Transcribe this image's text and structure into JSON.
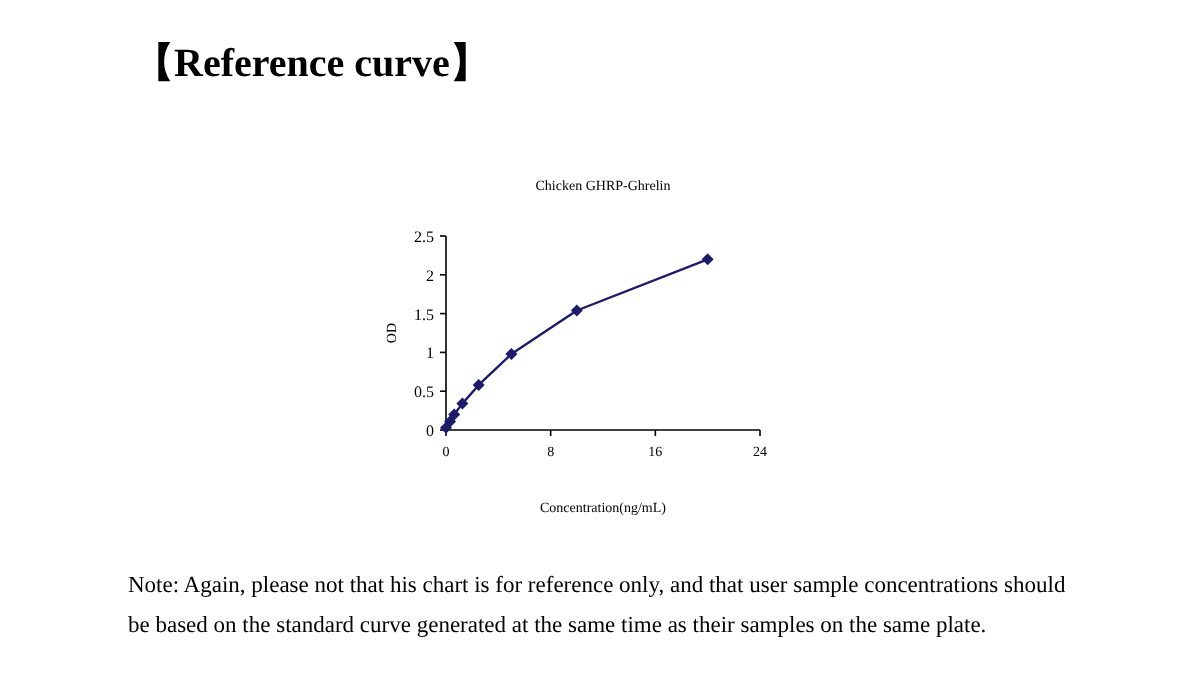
{
  "chart_data": {
    "type": "line",
    "title": "【Reference curve】",
    "subtitle": "Chicken GHRP-Ghrelin",
    "xlabel": "Concentration(ng/mL)",
    "ylabel": "OD",
    "x": [
      0,
      0.3125,
      0.625,
      1.25,
      2.5,
      5,
      10,
      20
    ],
    "series": [
      {
        "color": "#1c1c6b",
        "values": [
          0.03,
          0.11,
          0.2,
          0.34,
          0.58,
          0.98,
          1.54,
          2.2
        ]
      }
    ],
    "xlim": [
      0,
      24
    ],
    "xticks": [
      0,
      8,
      16,
      24
    ],
    "ylim": [
      0,
      2.5
    ],
    "yticks": [
      0,
      {
        "value": 0.5,
        "label": "0.5"
      },
      1,
      {
        "value": 1.5,
        "label": "1.5"
      },
      2,
      {
        "value": 2.5,
        "label": "2.5"
      }
    ],
    "marker": "diamond",
    "line_style": "solid",
    "annotations": [
      "Note: Again, please not that his chart is for reference only, and that user sample concentrations should be based on the standard curve generated at the same time as their samples on the same plate."
    ]
  }
}
